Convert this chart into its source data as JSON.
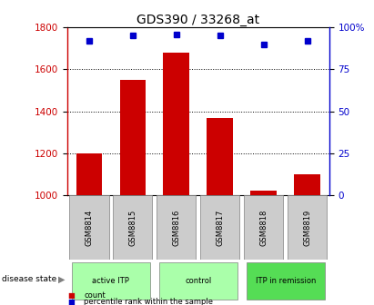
{
  "title": "GDS390 / 33268_at",
  "samples": [
    "GSM8814",
    "GSM8815",
    "GSM8816",
    "GSM8817",
    "GSM8818",
    "GSM8819"
  ],
  "counts": [
    1200,
    1550,
    1680,
    1370,
    1020,
    1100
  ],
  "percentile_ranks": [
    92,
    95,
    96,
    95,
    90,
    92
  ],
  "ylim_left": [
    1000,
    1800
  ],
  "ylim_right": [
    0,
    100
  ],
  "yticks_left": [
    1000,
    1200,
    1400,
    1600,
    1800
  ],
  "yticks_right": [
    0,
    25,
    50,
    75,
    100
  ],
  "bar_color": "#cc0000",
  "marker_color": "#0000cc",
  "bar_width": 0.6,
  "groups": [
    {
      "label": "active ITP",
      "start": 0,
      "end": 1,
      "color": "#aaffaa"
    },
    {
      "label": "control",
      "start": 2,
      "end": 3,
      "color": "#aaffaa"
    },
    {
      "label": "ITP in remission",
      "start": 4,
      "end": 5,
      "color": "#55dd55"
    }
  ],
  "group_label_prefix": "disease state",
  "legend_count_label": "count",
  "legend_percentile_label": "percentile rank within the sample",
  "bg_color": "#ffffff",
  "xlabel_bg": "#cccccc",
  "title_fontsize": 10
}
